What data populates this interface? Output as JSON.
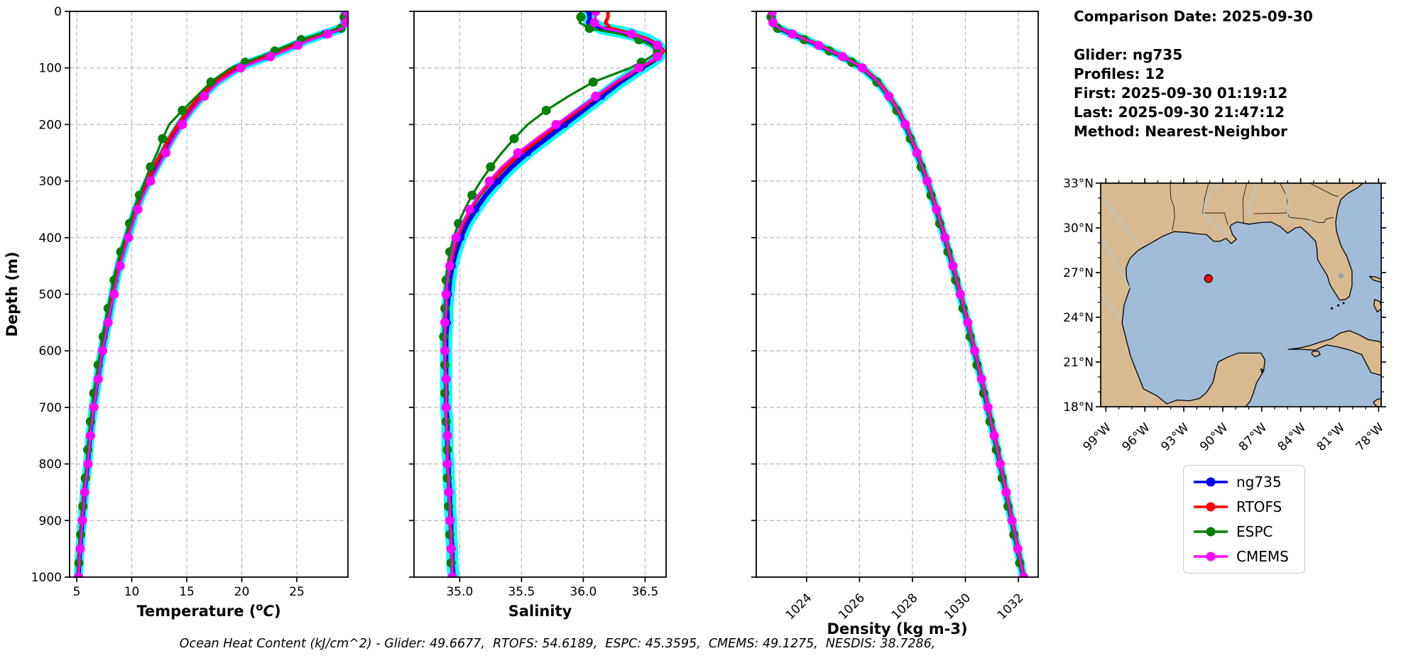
{
  "info_panel": {
    "lines": [
      "Comparison Date: 2025-09-30",
      "",
      "Glider: ng735",
      "Profiles: 12",
      "First: 2025-09-30 01:19:12",
      "Last: 2025-09-30 21:47:12",
      "Method: Nearest-Neighbor"
    ]
  },
  "caption": {
    "text": "Ocean Heat Content (kJ/cm^2) - Glider: 49.6677,  RTOFS: 54.6189,  ESPC: 45.3595,  CMEMS: 49.1275,  NESDIS: 38.7286,"
  },
  "legend": {
    "items": [
      {
        "label": "ng735",
        "color": "#0000ff"
      },
      {
        "label": "RTOFS",
        "color": "#ff0000"
      },
      {
        "label": "ESPC",
        "color": "#008000"
      },
      {
        "label": "CMEMS",
        "color": "#ff00ff"
      }
    ]
  },
  "map": {
    "extent": {
      "lon": [
        -99.4,
        -77.8
      ],
      "lat": [
        18,
        33
      ]
    },
    "ocean_color": "#a0bcd8",
    "land_color": "#d9ba90",
    "river_color": "#a6cee3",
    "lake_color": "#a0a0a0",
    "marker": {
      "lon": -91.1,
      "lat": 26.6,
      "color": "#ff0000"
    },
    "lat_ticks": [
      {
        "v": 33,
        "label": "33°N"
      },
      {
        "v": 30,
        "label": "30°N"
      },
      {
        "v": 27,
        "label": "27°N"
      },
      {
        "v": 24,
        "label": "24°N"
      },
      {
        "v": 21,
        "label": "21°N"
      },
      {
        "v": 18,
        "label": "18°N"
      }
    ],
    "lon_ticks": [
      {
        "v": -99,
        "label": "99°W"
      },
      {
        "v": -96,
        "label": "96°W"
      },
      {
        "v": -93,
        "label": "93°W"
      },
      {
        "v": -90,
        "label": "90°W"
      },
      {
        "v": -87,
        "label": "87°W"
      },
      {
        "v": -84,
        "label": "84°W"
      },
      {
        "v": -81,
        "label": "81°W"
      },
      {
        "v": -78,
        "label": "78°W"
      }
    ]
  },
  "chart_data": {
    "type": "line",
    "subtype": "ocean-depth-profiles",
    "grid": "dashed",
    "depth": {
      "label": "Depth (m)",
      "lim": [
        0,
        1000
      ],
      "ticks": [
        {
          "v": 0,
          "label": "0"
        },
        {
          "v": 100,
          "label": "100"
        },
        {
          "v": 200,
          "label": "200"
        },
        {
          "v": 300,
          "label": "300"
        },
        {
          "v": 400,
          "label": "400"
        },
        {
          "v": 500,
          "label": "500"
        },
        {
          "v": 600,
          "label": "600"
        },
        {
          "v": 700,
          "label": "700"
        },
        {
          "v": 800,
          "label": "800"
        },
        {
          "v": 900,
          "label": "900"
        },
        {
          "v": 1000,
          "label": "1000"
        }
      ]
    },
    "panels": [
      {
        "key": "temperature",
        "xlabel_parts": [
          {
            "t": "Temperature ("
          },
          {
            "t": "o",
            "sup": true
          },
          {
            "t": "C",
            "italic": true,
            "reset": true
          },
          {
            "t": ")"
          }
        ],
        "lim": [
          4.35,
          29.65
        ],
        "tick_rotation": 0,
        "depth_labels": true,
        "ticks": [
          {
            "v": 5,
            "label": "5"
          },
          {
            "v": 10,
            "label": "10"
          },
          {
            "v": 15,
            "label": "15"
          },
          {
            "v": 20,
            "label": "20"
          },
          {
            "v": 25,
            "label": "25"
          }
        ]
      },
      {
        "key": "salinity",
        "xlabel_parts": [
          {
            "t": "Salinity"
          }
        ],
        "lim": [
          34.63,
          36.67
        ],
        "tick_rotation": 0,
        "depth_labels": false,
        "ticks": [
          {
            "v": 35.0,
            "label": "35.0"
          },
          {
            "v": 35.5,
            "label": "35.5"
          },
          {
            "v": 36.0,
            "label": "36.0"
          },
          {
            "v": 36.5,
            "label": "36.5"
          }
        ]
      },
      {
        "key": "density",
        "xlabel_parts": [
          {
            "t": "Density (kg m-3)"
          }
        ],
        "lim": [
          1022.1,
          1032.75
        ],
        "tick_rotation": -45,
        "depth_labels": false,
        "ticks": [
          {
            "v": 1024,
            "label": "1024"
          },
          {
            "v": 1026,
            "label": "1026"
          },
          {
            "v": 1028,
            "label": "1028"
          },
          {
            "v": 1030,
            "label": "1030"
          },
          {
            "v": 1032,
            "label": "1032"
          }
        ]
      }
    ],
    "depths": [
      0,
      10,
      20,
      30,
      40,
      50,
      60,
      70,
      80,
      90,
      100,
      125,
      150,
      175,
      200,
      225,
      250,
      275,
      300,
      325,
      350,
      375,
      400,
      425,
      450,
      475,
      500,
      525,
      550,
      575,
      600,
      625,
      650,
      675,
      700,
      725,
      750,
      775,
      800,
      825,
      850,
      875,
      900,
      925,
      950,
      975,
      1000
    ],
    "envelope": {
      "follows": "ng735",
      "color": "#00ffff",
      "width": {
        "temperature": 13,
        "salinity": 17,
        "density": 12
      }
    },
    "series": [
      {
        "name": "ng735",
        "color": "#0000ff",
        "line_width": 6.5,
        "marker_r": 5,
        "marker_every": 2,
        "marker_phase": 0,
        "values": {
          "temperature": [
            29.4,
            29.4,
            29.35,
            29.1,
            27.5,
            26.0,
            24.8,
            23.6,
            22.3,
            20.9,
            19.6,
            17.7,
            16.4,
            15.3,
            14.4,
            13.6,
            12.9,
            12.2,
            11.5,
            10.9,
            10.4,
            10.0,
            9.6,
            9.2,
            8.85,
            8.55,
            8.3,
            8.05,
            7.8,
            7.55,
            7.3,
            7.1,
            6.9,
            6.7,
            6.5,
            6.35,
            6.2,
            6.1,
            6.0,
            5.85,
            5.7,
            5.6,
            5.5,
            5.4,
            5.3,
            5.2,
            5.15
          ],
          "salinity": [
            36.05,
            36.05,
            36.05,
            36.15,
            36.38,
            36.52,
            36.6,
            36.64,
            36.61,
            36.55,
            36.47,
            36.3,
            36.15,
            36.0,
            35.85,
            35.7,
            35.55,
            35.42,
            35.31,
            35.21,
            35.13,
            35.06,
            35.01,
            34.97,
            34.94,
            34.92,
            34.91,
            34.9,
            34.9,
            34.89,
            34.89,
            34.89,
            34.89,
            34.89,
            34.89,
            34.9,
            34.9,
            34.9,
            34.91,
            34.91,
            34.92,
            34.92,
            34.93,
            34.93,
            34.94,
            34.94,
            34.95
          ],
          "density": [
            1022.7,
            1022.7,
            1022.72,
            1022.95,
            1023.45,
            1023.95,
            1024.45,
            1024.9,
            1025.35,
            1025.75,
            1026.1,
            1026.7,
            1027.1,
            1027.45,
            1027.72,
            1027.95,
            1028.16,
            1028.36,
            1028.55,
            1028.73,
            1028.9,
            1029.06,
            1029.22,
            1029.37,
            1029.52,
            1029.66,
            1029.8,
            1029.94,
            1030.08,
            1030.21,
            1030.34,
            1030.47,
            1030.6,
            1030.72,
            1030.84,
            1030.96,
            1031.08,
            1031.2,
            1031.31,
            1031.42,
            1031.53,
            1031.64,
            1031.75,
            1031.86,
            1031.97,
            1032.08,
            1032.19
          ]
        }
      },
      {
        "name": "RTOFS",
        "color": "#ff0000",
        "line_width": 5,
        "marker_r": 0,
        "marker_every": 2,
        "marker_phase": 0,
        "values": {
          "temperature": [
            29.45,
            29.45,
            29.4,
            29.0,
            27.2,
            25.7,
            24.5,
            23.3,
            22.0,
            20.6,
            19.3,
            17.5,
            16.2,
            15.1,
            14.2,
            13.4,
            12.7,
            12.0,
            11.35,
            10.75,
            10.25,
            9.85,
            9.45,
            9.05,
            8.7,
            8.4,
            8.15,
            7.9,
            7.65,
            7.4,
            7.2,
            7.0,
            6.8,
            6.6,
            6.45,
            6.3,
            6.15,
            6.05,
            5.95,
            5.8,
            5.65,
            5.55,
            5.45,
            5.35,
            5.25,
            5.18,
            5.12
          ],
          "salinity": [
            36.2,
            36.2,
            36.18,
            36.22,
            36.4,
            36.53,
            36.61,
            36.65,
            36.61,
            36.54,
            36.45,
            36.27,
            36.11,
            35.96,
            35.8,
            35.65,
            35.5,
            35.37,
            35.26,
            35.16,
            35.09,
            35.03,
            34.98,
            34.95,
            34.92,
            34.9,
            34.89,
            34.89,
            34.88,
            34.88,
            34.88,
            34.88,
            34.89,
            34.89,
            34.89,
            34.89,
            34.9,
            34.9,
            34.9,
            34.91,
            34.91,
            34.92,
            34.92,
            34.93,
            34.93,
            34.94,
            34.94
          ],
          "density": [
            1022.74,
            1022.74,
            1022.76,
            1022.99,
            1023.49,
            1023.99,
            1024.49,
            1024.94,
            1025.39,
            1025.79,
            1026.14,
            1026.74,
            1027.14,
            1027.48,
            1027.75,
            1027.98,
            1028.19,
            1028.39,
            1028.58,
            1028.76,
            1028.93,
            1029.09,
            1029.25,
            1029.4,
            1029.55,
            1029.69,
            1029.83,
            1029.97,
            1030.11,
            1030.24,
            1030.37,
            1030.5,
            1030.63,
            1030.75,
            1030.87,
            1030.99,
            1031.11,
            1031.23,
            1031.34,
            1031.45,
            1031.56,
            1031.67,
            1031.78,
            1031.89,
            1032.0,
            1032.11,
            1032.22
          ]
        }
      },
      {
        "name": "ESPC",
        "color": "#008000",
        "line_width": 3.2,
        "marker_r": 6.5,
        "marker_every": 2,
        "marker_phase": 1,
        "values": {
          "temperature": [
            29.3,
            29.3,
            29.25,
            29.0,
            27.0,
            25.4,
            24.2,
            23.0,
            21.7,
            20.3,
            19.0,
            17.2,
            15.9,
            14.6,
            13.4,
            12.8,
            12.3,
            11.7,
            11.2,
            10.7,
            10.2,
            9.8,
            9.4,
            9.0,
            8.7,
            8.4,
            8.1,
            7.85,
            7.6,
            7.4,
            7.15,
            6.95,
            6.75,
            6.55,
            6.4,
            6.25,
            6.1,
            6.0,
            5.9,
            5.78,
            5.65,
            5.55,
            5.45,
            5.35,
            5.28,
            5.2,
            5.12
          ],
          "salinity": [
            35.98,
            35.98,
            35.97,
            36.05,
            36.3,
            36.45,
            36.55,
            36.6,
            36.55,
            36.47,
            36.38,
            36.08,
            35.88,
            35.7,
            35.55,
            35.44,
            35.34,
            35.25,
            35.17,
            35.1,
            35.04,
            34.99,
            34.95,
            34.92,
            34.9,
            34.89,
            34.88,
            34.88,
            34.87,
            34.87,
            34.87,
            34.88,
            34.88,
            34.88,
            34.89,
            34.89,
            34.89,
            34.9,
            34.9,
            34.9,
            34.91,
            34.91,
            34.92,
            34.92,
            34.93,
            34.93,
            34.94
          ],
          "density": [
            1022.66,
            1022.66,
            1022.68,
            1022.91,
            1023.41,
            1023.91,
            1024.41,
            1024.86,
            1025.31,
            1025.71,
            1026.06,
            1026.66,
            1027.06,
            1027.41,
            1027.69,
            1027.92,
            1028.13,
            1028.33,
            1028.52,
            1028.7,
            1028.87,
            1029.03,
            1029.19,
            1029.34,
            1029.49,
            1029.63,
            1029.77,
            1029.91,
            1030.05,
            1030.18,
            1030.31,
            1030.44,
            1030.57,
            1030.69,
            1030.81,
            1030.93,
            1031.05,
            1031.17,
            1031.28,
            1031.39,
            1031.5,
            1031.61,
            1031.72,
            1031.83,
            1031.94,
            1032.05,
            1032.16
          ]
        }
      },
      {
        "name": "CMEMS",
        "color": "#ff00ff",
        "line_width": 3.2,
        "marker_r": 6.5,
        "marker_every": 2,
        "marker_phase": 0,
        "values": {
          "temperature": [
            29.5,
            29.5,
            29.45,
            29.2,
            27.8,
            26.3,
            25.1,
            23.9,
            22.6,
            21.2,
            19.9,
            17.9,
            16.6,
            15.5,
            14.6,
            13.8,
            13.1,
            12.4,
            11.7,
            11.05,
            10.55,
            10.1,
            9.7,
            9.3,
            8.95,
            8.65,
            8.4,
            8.1,
            7.85,
            7.6,
            7.35,
            7.15,
            6.95,
            6.75,
            6.55,
            6.4,
            6.25,
            6.12,
            6.02,
            5.88,
            5.72,
            5.62,
            5.52,
            5.42,
            5.32,
            5.22,
            5.17
          ],
          "salinity": [
            36.1,
            36.1,
            36.09,
            36.17,
            36.39,
            36.52,
            36.6,
            36.64,
            36.6,
            36.53,
            36.45,
            36.26,
            36.1,
            35.94,
            35.78,
            35.62,
            35.47,
            35.34,
            35.24,
            35.15,
            35.08,
            35.02,
            34.97,
            34.94,
            34.92,
            34.9,
            34.89,
            34.89,
            34.88,
            34.88,
            34.88,
            34.88,
            34.89,
            34.89,
            34.89,
            34.89,
            34.9,
            34.9,
            34.9,
            34.91,
            34.91,
            34.92,
            34.92,
            34.93,
            34.93,
            34.94,
            34.94
          ],
          "density": [
            1022.71,
            1022.71,
            1022.73,
            1022.96,
            1023.46,
            1023.96,
            1024.46,
            1024.91,
            1025.36,
            1025.76,
            1026.11,
            1026.71,
            1027.11,
            1027.46,
            1027.73,
            1027.96,
            1028.17,
            1028.37,
            1028.56,
            1028.74,
            1028.91,
            1029.07,
            1029.23,
            1029.38,
            1029.53,
            1029.67,
            1029.81,
            1029.95,
            1030.09,
            1030.22,
            1030.35,
            1030.48,
            1030.61,
            1030.73,
            1030.85,
            1030.97,
            1031.09,
            1031.21,
            1031.32,
            1031.43,
            1031.54,
            1031.65,
            1031.76,
            1031.87,
            1031.98,
            1032.09,
            1032.2
          ]
        }
      }
    ]
  }
}
